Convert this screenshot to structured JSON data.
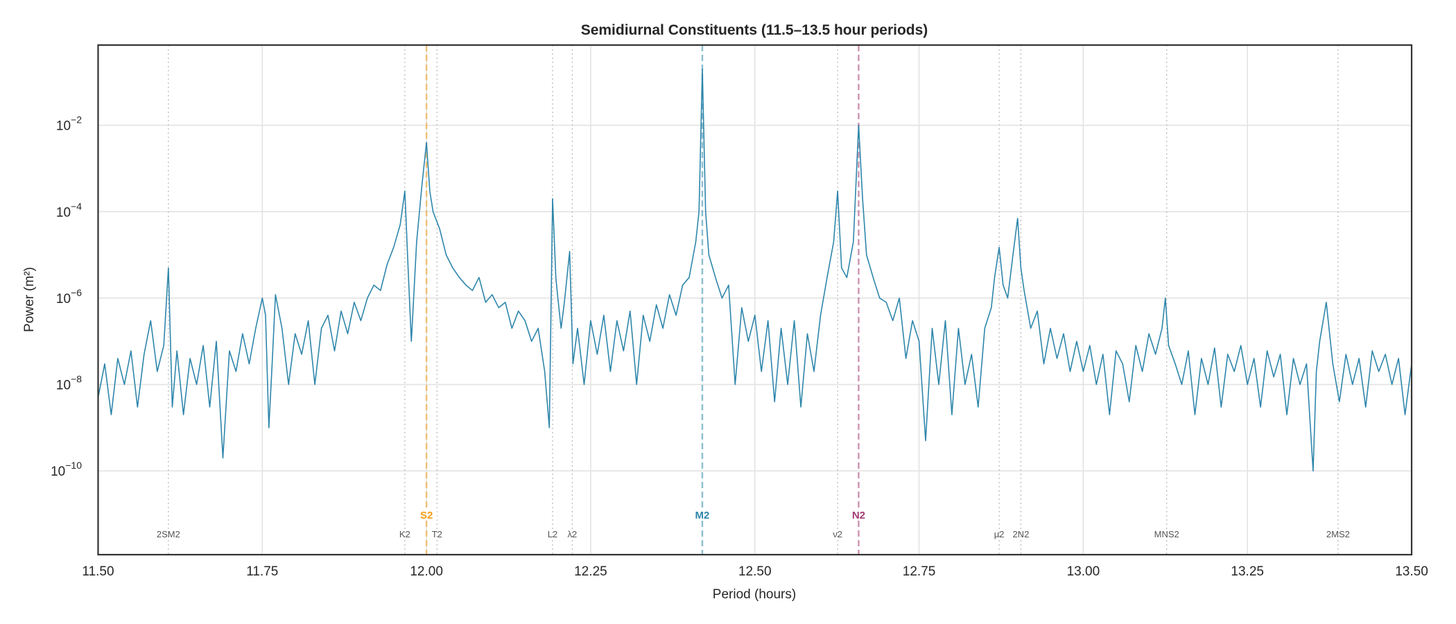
{
  "chart_data": {
    "type": "line",
    "title": "Semidiurnal Constituents (11.5–13.5 hour periods)",
    "xlabel": "Period (hours)",
    "ylabel": "Power (m²)",
    "xlim": [
      11.5,
      13.5
    ],
    "ylim": [
      1.15e-12,
      0.72
    ],
    "yscale": "log",
    "grid": true,
    "xticks": [
      "11.50",
      "11.75",
      "12.00",
      "12.25",
      "12.50",
      "12.75",
      "13.00",
      "13.25",
      "13.50"
    ],
    "yticks": [
      {
        "base": "10",
        "exp": "−2",
        "value": 0.01
      },
      {
        "base": "10",
        "exp": "−4",
        "value": 0.0001
      },
      {
        "base": "10",
        "exp": "−6",
        "value": 1e-06
      },
      {
        "base": "10",
        "exp": "−8",
        "value": 1e-08
      },
      {
        "base": "10",
        "exp": "−10",
        "value": 1e-10
      }
    ],
    "line_color": "#2e86ab",
    "series": [
      {
        "x": [
          11.5,
          11.51,
          11.52,
          11.53,
          11.54,
          11.55,
          11.56,
          11.57,
          11.58,
          11.59,
          11.6,
          11.607,
          11.613,
          11.62,
          11.63,
          11.64,
          11.65,
          11.66,
          11.67,
          11.68,
          11.69,
          11.7,
          11.71,
          11.72,
          11.73,
          11.74,
          11.75,
          11.755,
          11.76,
          11.765,
          11.77,
          11.78,
          11.79,
          11.8,
          11.81,
          11.82,
          11.83,
          11.84,
          11.85,
          11.86,
          11.87,
          11.88,
          11.89,
          11.9,
          11.91,
          11.92,
          11.93,
          11.94,
          11.95,
          11.96,
          11.967,
          11.972,
          11.977,
          11.985,
          11.993,
          12.0,
          12.005,
          12.01,
          12.02,
          12.03,
          12.04,
          12.05,
          12.06,
          12.07,
          12.08,
          12.09,
          12.1,
          12.11,
          12.12,
          12.13,
          12.14,
          12.15,
          12.16,
          12.17,
          12.18,
          12.187,
          12.192,
          12.197,
          12.2,
          12.205,
          12.21,
          12.218,
          12.223,
          12.23,
          12.24,
          12.25,
          12.26,
          12.27,
          12.28,
          12.29,
          12.3,
          12.31,
          12.32,
          12.33,
          12.34,
          12.35,
          12.36,
          12.37,
          12.38,
          12.39,
          12.4,
          12.41,
          12.415,
          12.42,
          12.425,
          12.43,
          12.44,
          12.45,
          12.46,
          12.47,
          12.48,
          12.49,
          12.5,
          12.51,
          12.52,
          12.53,
          12.54,
          12.55,
          12.56,
          12.57,
          12.58,
          12.59,
          12.6,
          12.61,
          12.62,
          12.626,
          12.632,
          12.64,
          12.65,
          12.658,
          12.664,
          12.67,
          12.68,
          12.69,
          12.7,
          12.71,
          12.72,
          12.73,
          12.74,
          12.75,
          12.76,
          12.77,
          12.78,
          12.79,
          12.8,
          12.81,
          12.82,
          12.83,
          12.84,
          12.85,
          12.86,
          12.865,
          12.872,
          12.878,
          12.885,
          12.893,
          12.9,
          12.905,
          12.91,
          12.92,
          12.93,
          12.94,
          12.95,
          12.96,
          12.97,
          12.98,
          12.99,
          13.0,
          13.01,
          13.02,
          13.03,
          13.04,
          13.05,
          13.06,
          13.07,
          13.08,
          13.09,
          13.1,
          13.11,
          13.12,
          13.125,
          13.13,
          13.14,
          13.15,
          13.16,
          13.17,
          13.18,
          13.19,
          13.2,
          13.21,
          13.22,
          13.23,
          13.24,
          13.25,
          13.26,
          13.27,
          13.28,
          13.29,
          13.3,
          13.31,
          13.32,
          13.33,
          13.34,
          13.35,
          13.355,
          13.36,
          13.37,
          13.38,
          13.39,
          13.4,
          13.41,
          13.42,
          13.43,
          13.44,
          13.45,
          13.46,
          13.47,
          13.48,
          13.49,
          13.5
        ],
        "y": [
          5e-09,
          3e-08,
          2e-09,
          4e-08,
          1e-08,
          6e-08,
          3e-09,
          5e-08,
          3e-07,
          2e-08,
          8e-08,
          5e-06,
          3e-09,
          6e-08,
          2e-09,
          4e-08,
          1e-08,
          8e-08,
          3e-09,
          1e-07,
          2e-10,
          6e-08,
          2e-08,
          1.5e-07,
          3e-08,
          2e-07,
          1e-06,
          4e-07,
          1e-09,
          3e-08,
          1.2e-06,
          2e-07,
          1e-08,
          1.5e-07,
          5e-08,
          3e-07,
          1e-08,
          2e-07,
          4e-07,
          6e-08,
          5e-07,
          1.5e-07,
          8e-07,
          3e-07,
          1e-06,
          2e-06,
          1.5e-06,
          6e-06,
          1.5e-05,
          5e-05,
          0.0003,
          5e-06,
          1e-07,
          2e-05,
          0.0004,
          0.004,
          0.0003,
          0.0001,
          4e-05,
          1e-05,
          5e-06,
          3e-06,
          2e-06,
          1.5e-06,
          3e-06,
          8e-07,
          1.2e-06,
          6e-07,
          8e-07,
          2e-07,
          5e-07,
          3e-07,
          1e-07,
          2e-07,
          2e-08,
          1e-09,
          0.0002,
          3e-06,
          1e-06,
          2e-07,
          8e-07,
          1.2e-05,
          3e-08,
          2e-07,
          1e-08,
          3e-07,
          5e-08,
          4e-07,
          2e-08,
          3e-07,
          6e-08,
          5e-07,
          1e-08,
          4e-07,
          1e-07,
          7e-07,
          2e-07,
          1.2e-06,
          4e-07,
          2e-06,
          3e-06,
          2e-05,
          0.0001,
          0.2,
          0.0001,
          1e-05,
          3e-06,
          1e-06,
          2e-06,
          1e-08,
          6e-07,
          1e-07,
          4e-07,
          2e-08,
          3e-07,
          4e-09,
          2e-07,
          1e-08,
          3e-07,
          3e-09,
          1.5e-07,
          2e-08,
          4e-07,
          3e-06,
          2e-05,
          0.0003,
          5e-06,
          3e-06,
          2e-05,
          0.01,
          0.0002,
          1e-05,
          3e-06,
          1e-06,
          8e-07,
          3e-07,
          1e-06,
          4e-08,
          3e-07,
          1e-07,
          5e-10,
          2e-07,
          1e-08,
          3e-07,
          2e-09,
          2e-07,
          1e-08,
          5e-08,
          3e-09,
          2e-07,
          6e-07,
          3e-06,
          1.5e-05,
          2e-06,
          1e-06,
          1e-05,
          7e-05,
          5e-06,
          1.5e-06,
          2e-07,
          5e-07,
          3e-08,
          2e-07,
          4e-08,
          1.5e-07,
          2e-08,
          1e-07,
          2e-08,
          8e-08,
          1e-08,
          5e-08,
          2e-09,
          6e-08,
          3e-08,
          4e-09,
          8e-08,
          2e-08,
          1.5e-07,
          5e-08,
          2e-07,
          1e-06,
          8e-08,
          3e-08,
          1e-08,
          6e-08,
          2e-09,
          4e-08,
          1e-08,
          7e-08,
          3e-09,
          5e-08,
          2e-08,
          8e-08,
          1e-08,
          4e-08,
          3e-09,
          6e-08,
          1.5e-08,
          5e-08,
          2e-09,
          4e-08,
          1e-08,
          3e-08,
          1e-10,
          2e-08,
          1e-07,
          8e-07,
          3e-08,
          4e-09,
          5e-08,
          1e-08,
          4e-08,
          3e-09,
          6e-08,
          2e-08,
          5e-08,
          1e-08,
          4e-08,
          2e-09,
          3e-08
        ]
      }
    ],
    "major_constituents": [
      {
        "name": "S2",
        "period": 12.0,
        "color": "#f39c12"
      },
      {
        "name": "M2",
        "period": 12.42,
        "color": "#2e86ab"
      },
      {
        "name": "N2",
        "period": 12.658,
        "color": "#a23b72"
      }
    ],
    "minor_constituents": [
      {
        "name": "2SM2",
        "period": 11.607
      },
      {
        "name": "K2",
        "period": 11.967
      },
      {
        "name": "T2",
        "period": 12.016
      },
      {
        "name": "L2",
        "period": 12.192
      },
      {
        "name": "λ2",
        "period": 12.222
      },
      {
        "name": "ν2",
        "period": 12.626
      },
      {
        "name": "μ2",
        "period": 12.872
      },
      {
        "name": "2N2",
        "period": 12.905
      },
      {
        "name": "MNS2",
        "period": 13.127
      },
      {
        "name": "2MS2",
        "period": 13.388
      }
    ]
  }
}
